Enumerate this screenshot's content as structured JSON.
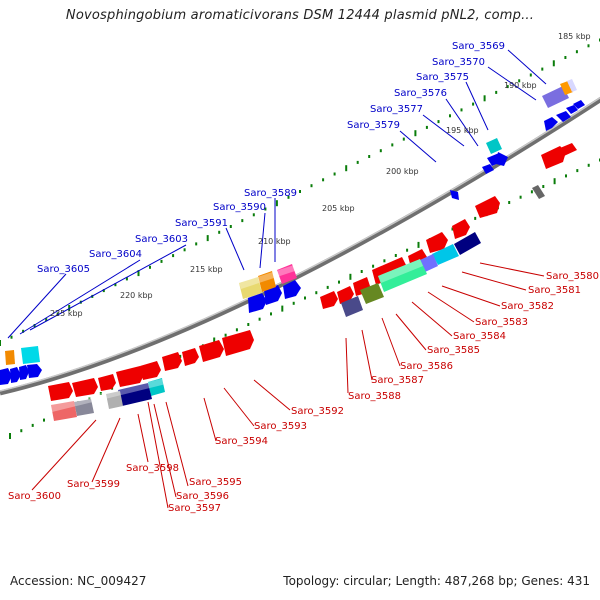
{
  "title": "Novosphingobium aromaticivorans DSM 12444 plasmid pNL2, comp...",
  "footer": {
    "accession": "Accession: NC_009427",
    "summary": "Topology: circular; Length: 487,268 bp; Genes: 431"
  },
  "colors": {
    "forward_gene": "#0000ee",
    "reverse_gene": "#ee0000",
    "top_label": "#0000c8",
    "bottom_label": "#c80000",
    "backbone": "#888888",
    "tick_mark": "#0a7d0a"
  },
  "kbp_ticks": [
    "185 kbp",
    "190 kbp",
    "195 kbp",
    "200 kbp",
    "205 kbp",
    "210 kbp",
    "215 kbp",
    "220 kbp",
    "225 kbp"
  ],
  "labels_top": [
    "Saro_3569",
    "Saro_3570",
    "Saro_3575",
    "Saro_3576",
    "Saro_3577",
    "Saro_3579",
    "Saro_3589",
    "Saro_3590",
    "Saro_3591",
    "Saro_3603",
    "Saro_3604",
    "Saro_3605"
  ],
  "labels_bottom": [
    "Saro_3580",
    "Saro_3581",
    "Saro_3582",
    "Saro_3583",
    "Saro_3584",
    "Saro_3585",
    "Saro_3586",
    "Saro_3587",
    "Saro_3588",
    "Saro_3592",
    "Saro_3593",
    "Saro_3594",
    "Saro_3595",
    "Saro_3596",
    "Saro_3597",
    "Saro_3598",
    "Saro_3599",
    "Saro_3600"
  ]
}
